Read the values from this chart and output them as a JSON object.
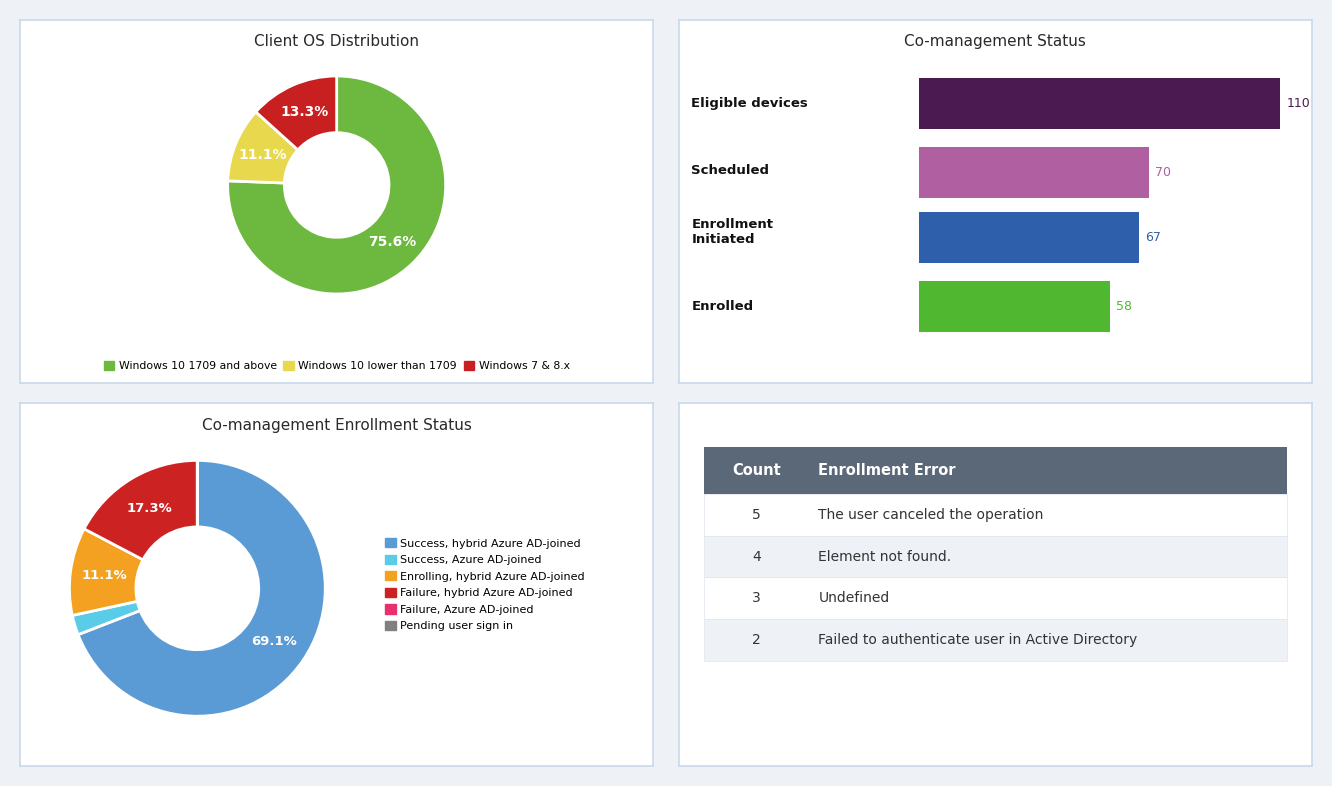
{
  "bg_color": "#eef2f7",
  "panel_bg": "#ffffff",
  "panel_border": "#c8d8ea",
  "pie1_title": "Client OS Distribution",
  "pie1_values": [
    75.6,
    11.1,
    13.3
  ],
  "pie1_colors": [
    "#6db83f",
    "#e8d84d",
    "#c82020"
  ],
  "pie1_labels": [
    "75.6%",
    "11.1%",
    "13.3%"
  ],
  "pie1_legend": [
    "Windows 10 1709 and above",
    "Windows 10 lower than 1709",
    "Windows 7 & 8.x"
  ],
  "pie1_startangle": 90,
  "bar_title": "Co-management Status",
  "bar_categories": [
    "Eligible devices",
    "Scheduled",
    "Enrollment\nInitiated",
    "Enrolled"
  ],
  "bar_values": [
    110,
    70,
    67,
    58
  ],
  "bar_colors": [
    "#4a1a50",
    "#b060a0",
    "#2e5faa",
    "#50b830"
  ],
  "bar_value_colors": [
    "#4a1a50",
    "#b060a0",
    "#2e5faa",
    "#50b830"
  ],
  "pie2_title": "Co-management Enrollment Status",
  "pie2_values": [
    69.1,
    2.5,
    11.1,
    17.3,
    0.0,
    0.0
  ],
  "pie2_colors": [
    "#5b9bd5",
    "#5bcce8",
    "#f4a020",
    "#cc2222",
    "#e83070",
    "#808080"
  ],
  "pie2_labels": [
    "69.1%",
    "",
    "11.1%",
    "17.3%",
    "",
    ""
  ],
  "pie2_legend": [
    "Success, hybrid Azure AD-joined",
    "Success, Azure AD-joined",
    "Enrolling, hybrid Azure AD-joined",
    "Failure, hybrid Azure AD-joined",
    "Failure, Azure AD-joined",
    "Pending user sign in"
  ],
  "pie2_startangle": 90,
  "table_header_bg": "#5a6878",
  "table_header_fg": "#ffffff",
  "table_alt_bg": "#eef2f7",
  "table_norm_bg": "#ffffff",
  "table_cols": [
    "Count",
    "Enrollment Error"
  ],
  "table_data": [
    [
      5,
      "The user canceled the operation"
    ],
    [
      4,
      "Element not found."
    ],
    [
      3,
      "Undefined"
    ],
    [
      2,
      "Failed to authenticate user in Active Directory"
    ]
  ]
}
